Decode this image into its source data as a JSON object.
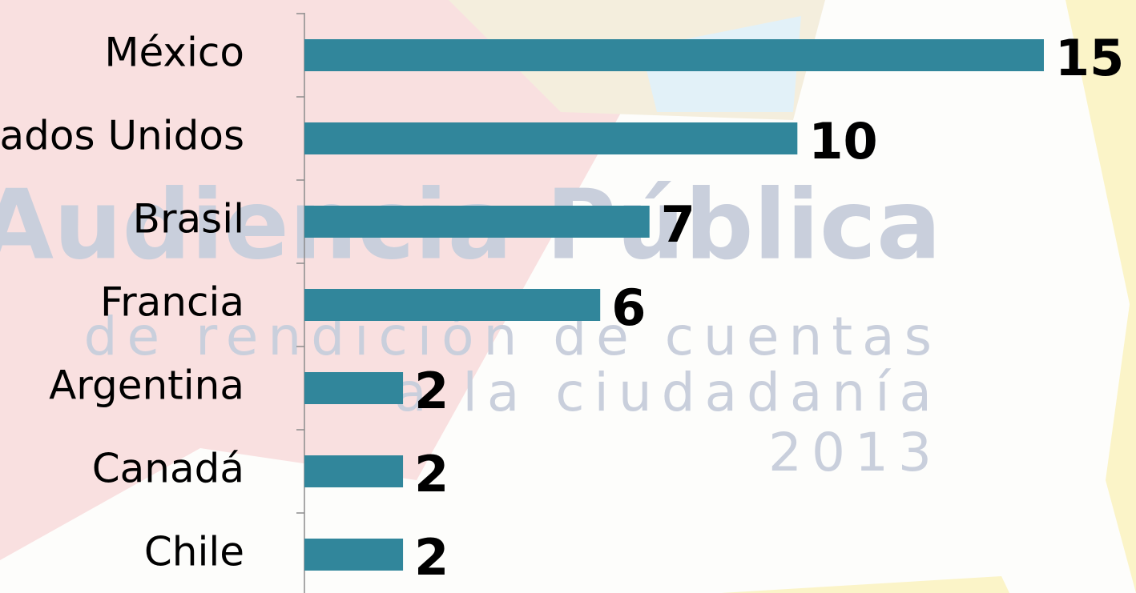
{
  "chart_data": {
    "type": "barh",
    "categories": [
      "México",
      "Estados Unidos",
      "Brasil",
      "Francia",
      "Argentina",
      "Canadá",
      "Chile"
    ],
    "values": [
      15,
      10,
      7,
      6,
      2,
      2,
      2
    ],
    "color": "#31869b",
    "xlim": [
      0,
      15
    ]
  },
  "background": {
    "lines": [
      "Audiencia Pública",
      "de rendición de cuentas",
      "a la ciudadanía",
      "2013"
    ]
  }
}
